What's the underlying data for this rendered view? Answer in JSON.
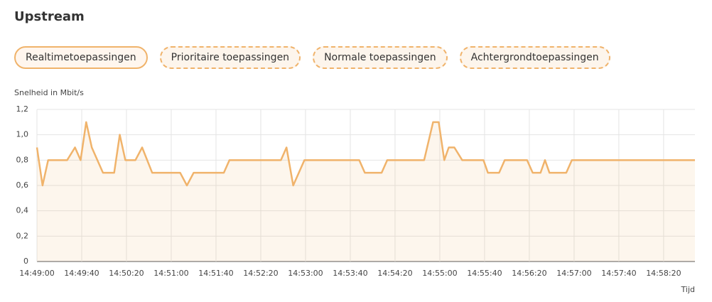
{
  "header": {
    "title": "Upstream"
  },
  "buttons": [
    "Realtimetoepassingen",
    "Prioritaire toepassingen",
    "Normale toepassingen",
    "Achtergrondtoepassingen"
  ],
  "chart_data": {
    "type": "area",
    "y_label": "Snelheid in Mbit/s",
    "x_label": "Tijd",
    "color": "#f0b36b",
    "grid": true,
    "x": [
      "14:49:00",
      "14:49:05",
      "14:49:10",
      "14:49:27",
      "14:49:34",
      "14:49:39",
      "14:49:44",
      "14:49:49",
      "14:49:59",
      "14:50:09",
      "14:50:14",
      "14:50:19",
      "14:50:28",
      "14:50:34",
      "14:50:43",
      "14:51:08",
      "14:51:14",
      "14:51:20",
      "14:51:47",
      "14:51:52",
      "14:52:38",
      "14:52:43",
      "14:52:49",
      "14:52:59",
      "14:53:48",
      "14:53:53",
      "14:54:08",
      "14:54:13",
      "14:54:46",
      "14:54:54",
      "14:54:59",
      "14:55:04",
      "14:55:08",
      "14:55:13",
      "14:55:20",
      "14:55:39",
      "14:55:43",
      "14:55:53",
      "14:55:58",
      "14:56:18",
      "14:56:23",
      "14:56:30",
      "14:56:34",
      "14:56:38",
      "14:56:53",
      "14:56:58",
      "14:58:48"
    ],
    "values": [
      0.9,
      0.6,
      0.8,
      0.8,
      0.9,
      0.8,
      1.1,
      0.9,
      0.7,
      0.7,
      1.0,
      0.8,
      0.8,
      0.9,
      0.7,
      0.7,
      0.6,
      0.7,
      0.7,
      0.8,
      0.8,
      0.9,
      0.6,
      0.8,
      0.8,
      0.7,
      0.7,
      0.8,
      0.8,
      1.1,
      1.1,
      0.8,
      0.9,
      0.9,
      0.8,
      0.8,
      0.7,
      0.7,
      0.8,
      0.8,
      0.7,
      0.7,
      0.8,
      0.7,
      0.7,
      0.8,
      0.8
    ],
    "xlim": [
      "14:49:00",
      "14:58:48"
    ],
    "xticks": [
      "14:49:00",
      "14:49:40",
      "14:50:20",
      "14:51:00",
      "14:51:40",
      "14:52:20",
      "14:53:00",
      "14:53:40",
      "14:54:20",
      "14:55:00",
      "14:55:40",
      "14:56:20",
      "14:57:00",
      "14:57:40",
      "14:58:20"
    ],
    "ylim": [
      0,
      1.2
    ],
    "yticks": [
      0,
      {
        "value": 0.2,
        "label": "0,2"
      },
      {
        "value": 0.4,
        "label": "0,4"
      },
      {
        "value": 0.6,
        "label": "0,6"
      },
      {
        "value": 0.8,
        "label": "0,8"
      },
      {
        "value": 1,
        "label": "1,0"
      },
      {
        "value": 1.2,
        "label": "1,2"
      }
    ]
  }
}
